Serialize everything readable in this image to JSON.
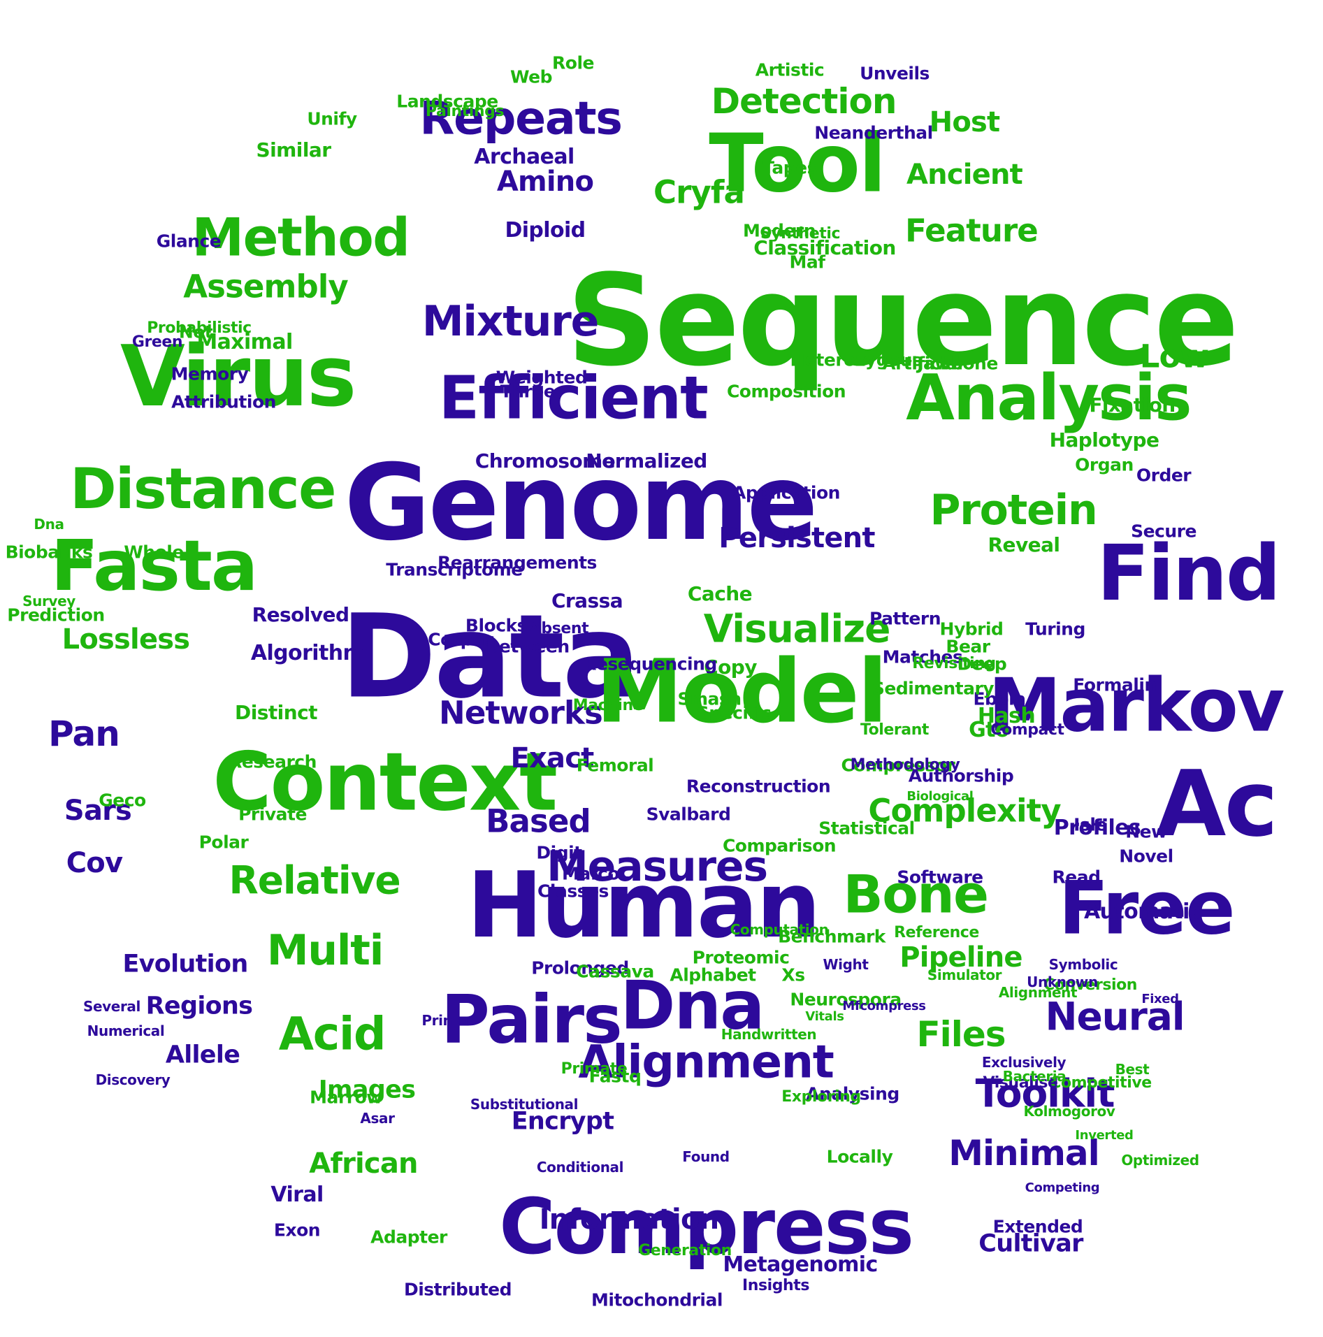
{
  "colors": {
    "green": "#1fb50e",
    "blue": "#2d0a9b",
    "background": "#ffffff"
  },
  "words": [
    {
      "t": "Sequence",
      "c": "g"
    },
    {
      "t": "Genome",
      "c": "b"
    },
    {
      "t": "Data",
      "c": "b"
    },
    {
      "t": "Human",
      "c": "b"
    },
    {
      "t": "Model",
      "c": "g"
    },
    {
      "t": "Tool",
      "c": "g"
    },
    {
      "t": "Markov",
      "c": "b"
    },
    {
      "t": "Compress",
      "c": "b"
    },
    {
      "t": "Context",
      "c": "g"
    },
    {
      "t": "Virus",
      "c": "g"
    },
    {
      "t": "Find",
      "c": "b"
    },
    {
      "t": "Ac",
      "c": "b"
    },
    {
      "t": "Fasta",
      "c": "g"
    },
    {
      "t": "Free",
      "c": "b"
    },
    {
      "t": "Analysis",
      "c": "g"
    },
    {
      "t": "Efficient",
      "c": "b"
    },
    {
      "t": "Pairs",
      "c": "b"
    },
    {
      "t": "Dna",
      "c": "b"
    },
    {
      "t": "Distance",
      "c": "g"
    },
    {
      "t": "Method",
      "c": "g"
    },
    {
      "t": "Bone",
      "c": "g"
    },
    {
      "t": "Measures",
      "c": "b"
    },
    {
      "t": "Repeats",
      "c": "b"
    },
    {
      "t": "Alignment",
      "c": "b"
    },
    {
      "t": "Mixture",
      "c": "b"
    },
    {
      "t": "Relative",
      "c": "g"
    },
    {
      "t": "Multi",
      "c": "g"
    },
    {
      "t": "Acid",
      "c": "g"
    },
    {
      "t": "Protein",
      "c": "g"
    },
    {
      "t": "Visualize",
      "c": "g"
    },
    {
      "t": "Detection",
      "c": "g"
    },
    {
      "t": "Feature",
      "c": "g"
    },
    {
      "t": "Cryfa",
      "c": "g"
    },
    {
      "t": "Toolkit",
      "c": "b"
    },
    {
      "t": "Neural",
      "c": "b"
    },
    {
      "t": "Networks",
      "c": "b"
    },
    {
      "t": "Complexity",
      "c": "g"
    },
    {
      "t": "Pan",
      "c": "b"
    },
    {
      "t": "Assembly",
      "c": "g"
    },
    {
      "t": "Files",
      "c": "g"
    },
    {
      "t": "Minimal",
      "c": "b"
    },
    {
      "t": "Low",
      "c": "g"
    },
    {
      "t": "Persistent",
      "c": "b"
    },
    {
      "t": "Exact",
      "c": "b"
    },
    {
      "t": "Based",
      "c": "b"
    },
    {
      "t": "Pipeline",
      "c": "g"
    },
    {
      "t": "Amino",
      "c": "b"
    },
    {
      "t": "Host",
      "c": "g"
    },
    {
      "t": "Ancient",
      "c": "g"
    },
    {
      "t": "Lossless",
      "c": "g"
    },
    {
      "t": "Automatic",
      "c": "b"
    },
    {
      "t": "Profiles",
      "c": "b"
    },
    {
      "t": "African",
      "c": "g"
    },
    {
      "t": "Sars",
      "c": "b"
    },
    {
      "t": "Cov",
      "c": "b"
    },
    {
      "t": "Evolution",
      "c": "b"
    },
    {
      "t": "Regions",
      "c": "b"
    },
    {
      "t": "Allele",
      "c": "b"
    },
    {
      "t": "Images",
      "c": "g"
    },
    {
      "t": "Encrypt",
      "c": "b"
    },
    {
      "t": "Information",
      "c": "b"
    },
    {
      "t": "Maximal",
      "c": "g"
    },
    {
      "t": "Diploid",
      "c": "b"
    },
    {
      "t": "Archaeal",
      "c": "b"
    },
    {
      "t": "Classification",
      "c": "g"
    },
    {
      "t": "Similar",
      "c": "g"
    },
    {
      "t": "Unify",
      "c": "g"
    },
    {
      "t": "Artistic",
      "c": "g"
    },
    {
      "t": "Chromosome",
      "c": "b"
    },
    {
      "t": "Normalized",
      "c": "b"
    },
    {
      "t": "Application",
      "c": "b"
    },
    {
      "t": "Composition",
      "c": "g"
    },
    {
      "t": "Heterozygous",
      "c": "g"
    },
    {
      "t": "Artificial",
      "c": "g"
    },
    {
      "t": "Jawbone",
      "c": "g"
    },
    {
      "t": "Haplotype",
      "c": "g"
    },
    {
      "t": "Fixation",
      "c": "g"
    },
    {
      "t": "Organ",
      "c": "g"
    },
    {
      "t": "Reveal",
      "c": "g"
    },
    {
      "t": "Cultivar",
      "c": "b"
    },
    {
      "t": "Extended",
      "c": "b"
    },
    {
      "t": "Metagenomic",
      "c": "b"
    },
    {
      "t": "Mitochondrial",
      "c": "b"
    },
    {
      "t": "Distributed",
      "c": "b"
    },
    {
      "t": "Rearrangements",
      "c": "b"
    },
    {
      "t": "Transcriptome",
      "c": "b"
    },
    {
      "t": "Algorithm",
      "c": "b"
    },
    {
      "t": "Resolved",
      "c": "b"
    },
    {
      "t": "Distinct",
      "c": "g"
    },
    {
      "t": "Research",
      "c": "g"
    },
    {
      "t": "Private",
      "c": "g"
    },
    {
      "t": "Polar",
      "c": "g"
    },
    {
      "t": "Marrow",
      "c": "g"
    },
    {
      "t": "Viral",
      "c": "b"
    },
    {
      "t": "Exon",
      "c": "b"
    },
    {
      "t": "Adapter",
      "c": "g"
    },
    {
      "t": "Crassa",
      "c": "b"
    },
    {
      "t": "Cache",
      "c": "g"
    },
    {
      "t": "Copy",
      "c": "g"
    },
    {
      "t": "Specific",
      "c": "g"
    },
    {
      "t": "Smash",
      "c": "g"
    },
    {
      "t": "Comparison",
      "c": "g"
    },
    {
      "t": "Reconstruction",
      "c": "b"
    },
    {
      "t": "Statistical",
      "c": "g"
    },
    {
      "t": "Hash",
      "c": "g"
    },
    {
      "t": "Gto",
      "c": "g"
    },
    {
      "t": "Deep",
      "c": "g"
    },
    {
      "t": "Bear",
      "c": "g"
    },
    {
      "t": "Hybrid",
      "c": "g"
    },
    {
      "t": "Turing",
      "c": "b"
    },
    {
      "t": "Ebola",
      "c": "b"
    },
    {
      "t": "Formalin",
      "c": "b"
    },
    {
      "t": "Secure",
      "c": "b"
    },
    {
      "t": "Order",
      "c": "b"
    },
    {
      "t": "New",
      "c": "b"
    },
    {
      "t": "Novel",
      "c": "b"
    },
    {
      "t": "Read",
      "c": "b"
    },
    {
      "t": "Isle",
      "c": "b"
    },
    {
      "t": "Digit",
      "c": "b"
    },
    {
      "t": "Mafco",
      "c": "b"
    },
    {
      "t": "Classes",
      "c": "b"
    },
    {
      "t": "Prolonged",
      "c": "b"
    },
    {
      "t": "Cassava",
      "c": "g"
    },
    {
      "t": "Alphabet",
      "c": "g"
    },
    {
      "t": "Proteomic",
      "c": "g"
    },
    {
      "t": "Xs",
      "c": "g"
    },
    {
      "t": "Geco",
      "c": "g"
    },
    {
      "t": "Dna",
      "c": "g"
    },
    {
      "t": "Whole",
      "c": "g"
    },
    {
      "t": "Biobanks",
      "c": "g"
    },
    {
      "t": "Survey",
      "c": "g"
    },
    {
      "t": "Prediction",
      "c": "g"
    },
    {
      "t": "Net",
      "c": "g"
    },
    {
      "t": "Probabilistic",
      "c": "g"
    },
    {
      "t": "Memory",
      "c": "b"
    },
    {
      "t": "Attribution",
      "c": "b"
    },
    {
      "t": "Glance",
      "c": "b"
    },
    {
      "t": "Green",
      "c": "b"
    },
    {
      "t": "Landscape",
      "c": "g"
    },
    {
      "t": "Paintings",
      "c": "g"
    },
    {
      "t": "Web",
      "c": "g"
    },
    {
      "t": "Role",
      "c": "g"
    },
    {
      "t": "Modern",
      "c": "g"
    },
    {
      "t": "Synthetic",
      "c": "g"
    },
    {
      "t": "Maf",
      "c": "g"
    },
    {
      "t": "Tapes",
      "c": "g"
    },
    {
      "t": "Neanderthal",
      "c": "b"
    },
    {
      "t": "Unveils",
      "c": "b"
    },
    {
      "t": "Pattern",
      "c": "b"
    },
    {
      "t": "Matches",
      "c": "b"
    },
    {
      "t": "Weighted",
      "c": "b"
    },
    {
      "t": "Three",
      "c": "b"
    },
    {
      "t": "Blocks",
      "c": "b"
    },
    {
      "t": "Corpus",
      "c": "b"
    },
    {
      "t": "Between",
      "c": "b"
    },
    {
      "t": "Absent",
      "c": "b"
    },
    {
      "t": "Fastq",
      "c": "g"
    },
    {
      "t": "Primate",
      "c": "g"
    },
    {
      "t": "Resequencing",
      "c": "b"
    },
    {
      "t": "Machine",
      "c": "g"
    },
    {
      "t": "Femoral",
      "c": "g"
    },
    {
      "t": "Svalbard",
      "c": "b"
    },
    {
      "t": "Benchmark",
      "c": "g"
    },
    {
      "t": "Software",
      "c": "b"
    },
    {
      "t": "Analysing",
      "c": "b"
    },
    {
      "t": "Exploring",
      "c": "g"
    },
    {
      "t": "Locally",
      "c": "g"
    },
    {
      "t": "Neurospora",
      "c": "g"
    },
    {
      "t": "Sedimentary",
      "c": "g"
    },
    {
      "t": "Revisiting",
      "c": "g"
    },
    {
      "t": "Compressor",
      "c": "g"
    },
    {
      "t": "Tolerant",
      "c": "g"
    },
    {
      "t": "Methodology",
      "c": "b"
    },
    {
      "t": "Authorship",
      "c": "b"
    },
    {
      "t": "Competitive",
      "c": "g"
    },
    {
      "t": "Reference",
      "c": "g"
    },
    {
      "t": "Compact",
      "c": "b"
    },
    {
      "t": "Visualise",
      "c": "b"
    },
    {
      "t": "Exclusively",
      "c": "b"
    },
    {
      "t": "Bacteria",
      "c": "g"
    },
    {
      "t": "Conversion",
      "c": "g"
    },
    {
      "t": "Best",
      "c": "g"
    },
    {
      "t": "Kolmogorov",
      "c": "g"
    },
    {
      "t": "Optimized",
      "c": "g"
    },
    {
      "t": "Alignment",
      "c": "g"
    },
    {
      "t": "Unknown",
      "c": "b"
    },
    {
      "t": "Symbolic",
      "c": "b"
    },
    {
      "t": "Several",
      "c": "b"
    },
    {
      "t": "Numerical",
      "c": "b"
    },
    {
      "t": "Discovery",
      "c": "b"
    },
    {
      "t": "Substitutional",
      "c": "b"
    },
    {
      "t": "Conditional",
      "c": "b"
    },
    {
      "t": "Generation",
      "c": "g"
    },
    {
      "t": "Insights",
      "c": "b"
    },
    {
      "t": "Wight",
      "c": "b"
    },
    {
      "t": "Computation",
      "c": "g"
    },
    {
      "t": "Handwritten",
      "c": "g"
    },
    {
      "t": "Simulator",
      "c": "g"
    },
    {
      "t": "Inverted",
      "c": "g"
    },
    {
      "t": "Fixed",
      "c": "b"
    },
    {
      "t": "Asar",
      "c": "b"
    },
    {
      "t": "Primer",
      "c": "b"
    },
    {
      "t": "Found",
      "c": "b"
    },
    {
      "t": "Biological",
      "c": "g"
    },
    {
      "t": "Competing",
      "c": "b"
    },
    {
      "t": "Mfcompress",
      "c": "b"
    },
    {
      "t": "Vitals",
      "c": "g"
    }
  ]
}
